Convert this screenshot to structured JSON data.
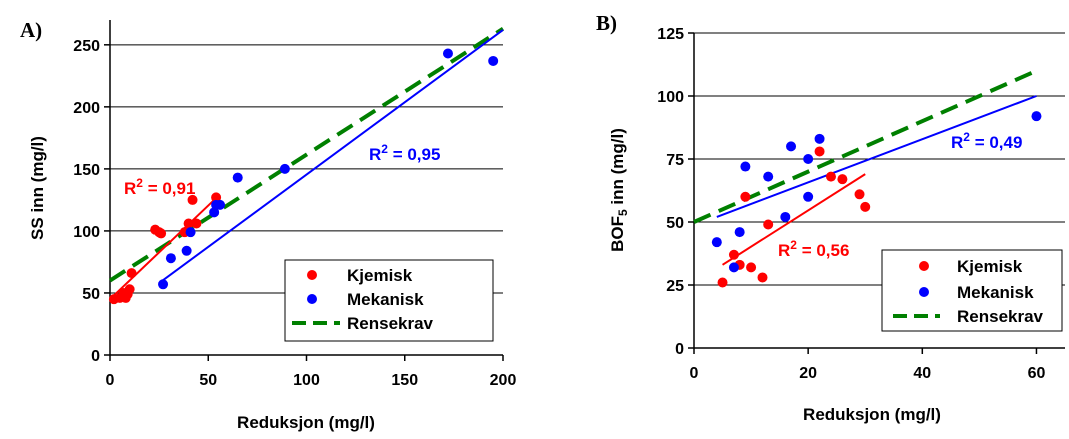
{
  "chart_data": [
    {
      "panel_label": "A)",
      "type": "scatter",
      "xlabel": "Reduksjon (mg/l)",
      "ylabel": "SS inn (mg/l)",
      "xlim": [
        0,
        200
      ],
      "ylim": [
        0,
        270
      ],
      "xticks": [
        0,
        50,
        100,
        150,
        200
      ],
      "yticks": [
        0,
        50,
        100,
        150,
        200,
        250
      ],
      "grid": "horizontal",
      "legend_position": "bottom-right",
      "series": [
        {
          "name": "Kjemisk",
          "color": "#ff0000",
          "points": [
            [
              2,
              45
            ],
            [
              5,
              46
            ],
            [
              7,
              50
            ],
            [
              8,
              46
            ],
            [
              9,
              49
            ],
            [
              10,
              53
            ],
            [
              11,
              66
            ],
            [
              23,
              101
            ],
            [
              25,
              99
            ],
            [
              26,
              98
            ],
            [
              38,
              99
            ],
            [
              40,
              106
            ],
            [
              42,
              125
            ],
            [
              44,
              106
            ],
            [
              54,
              127
            ]
          ]
        },
        {
          "name": "Mekanisk",
          "color": "#0000ff",
          "points": [
            [
              27,
              57
            ],
            [
              31,
              78
            ],
            [
              39,
              84
            ],
            [
              41,
              99
            ],
            [
              53,
              115
            ],
            [
              54,
              121
            ],
            [
              56,
              121
            ],
            [
              65,
              143
            ],
            [
              89,
              150
            ],
            [
              172,
              243
            ],
            [
              195,
              237
            ]
          ]
        }
      ],
      "trendlines": [
        {
          "series": "Kjemisk",
          "color": "#ff0000",
          "from": [
            0,
            45
          ],
          "to": [
            55,
            128
          ],
          "r2_label": "R² = 0,91"
        },
        {
          "series": "Mekanisk",
          "color": "#0000ff",
          "from": [
            25,
            58
          ],
          "to": [
            200,
            262
          ],
          "r2_label": "R² = 0,95"
        }
      ],
      "requirement_line": {
        "name": "Rensekrav",
        "color": "#008000",
        "from": [
          0,
          60
        ],
        "to": [
          200,
          263
        ]
      },
      "legend": [
        "Kjemisk",
        "Mekanisk",
        "Rensekrav"
      ]
    },
    {
      "panel_label": "B)",
      "type": "scatter",
      "xlabel": "Reduksjon (mg/l)",
      "ylabel": "BOF5 inn (mg/l)",
      "xlim": [
        0,
        65
      ],
      "ylim": [
        0,
        125
      ],
      "xticks": [
        0,
        20,
        40,
        60
      ],
      "yticks": [
        0,
        25,
        50,
        75,
        100,
        125
      ],
      "grid": "horizontal",
      "legend_position": "bottom-right",
      "series": [
        {
          "name": "Kjemisk",
          "color": "#ff0000",
          "points": [
            [
              5,
              26
            ],
            [
              7,
              37
            ],
            [
              8,
              33
            ],
            [
              9,
              60
            ],
            [
              10,
              32
            ],
            [
              12,
              28
            ],
            [
              13,
              49
            ],
            [
              22,
              78
            ],
            [
              24,
              68
            ],
            [
              26,
              67
            ],
            [
              29,
              61
            ],
            [
              30,
              56
            ]
          ]
        },
        {
          "name": "Mekanisk",
          "color": "#0000ff",
          "points": [
            [
              4,
              42
            ],
            [
              7,
              32
            ],
            [
              8,
              46
            ],
            [
              9,
              72
            ],
            [
              13,
              68
            ],
            [
              16,
              52
            ],
            [
              17,
              80
            ],
            [
              20,
              75
            ],
            [
              20,
              60
            ],
            [
              22,
              83
            ],
            [
              60,
              92
            ]
          ]
        }
      ],
      "trendlines": [
        {
          "series": "Kjemisk",
          "color": "#ff0000",
          "from": [
            5,
            33
          ],
          "to": [
            30,
            69
          ],
          "r2_label": "R² = 0,56"
        },
        {
          "series": "Mekanisk",
          "color": "#0000ff",
          "from": [
            4,
            52
          ],
          "to": [
            60,
            100
          ],
          "r2_label": "R² = 0,49"
        }
      ],
      "requirement_line": {
        "name": "Rensekrav",
        "color": "#008000",
        "from": [
          0,
          50
        ],
        "to": [
          60,
          110
        ]
      },
      "legend": [
        "Kjemisk",
        "Mekanisk",
        "Rensekrav"
      ]
    }
  ],
  "labels": {
    "a_panel": "A)",
    "b_panel": "B)",
    "a_xlabel": "Reduksjon (mg/l)",
    "a_ylabel": "SS inn (mg/l)",
    "b_xlabel": "Reduksjon (mg/l)",
    "b_ylabel_main": "BOF",
    "b_ylabel_sub": "5",
    "b_ylabel_rest": " inn (mg/l)",
    "a_r2_kjemisk_prefix": "R",
    "a_r2_kjemisk_sup": "2",
    "a_r2_kjemisk_value": " = 0,91",
    "a_r2_mekanisk_prefix": "R",
    "a_r2_mekanisk_sup": "2",
    "a_r2_mekanisk_value": " = 0,95",
    "b_r2_kjemisk_prefix": "R",
    "b_r2_kjemisk_sup": "2",
    "b_r2_kjemisk_value": " = 0,56",
    "b_r2_mekanisk_prefix": "R",
    "b_r2_mekanisk_sup": "2",
    "b_r2_mekanisk_value": " = 0,49",
    "legend_kjemisk": "Kjemisk",
    "legend_mekanisk": "Mekanisk",
    "legend_rensekrav": "Rensekrav"
  }
}
